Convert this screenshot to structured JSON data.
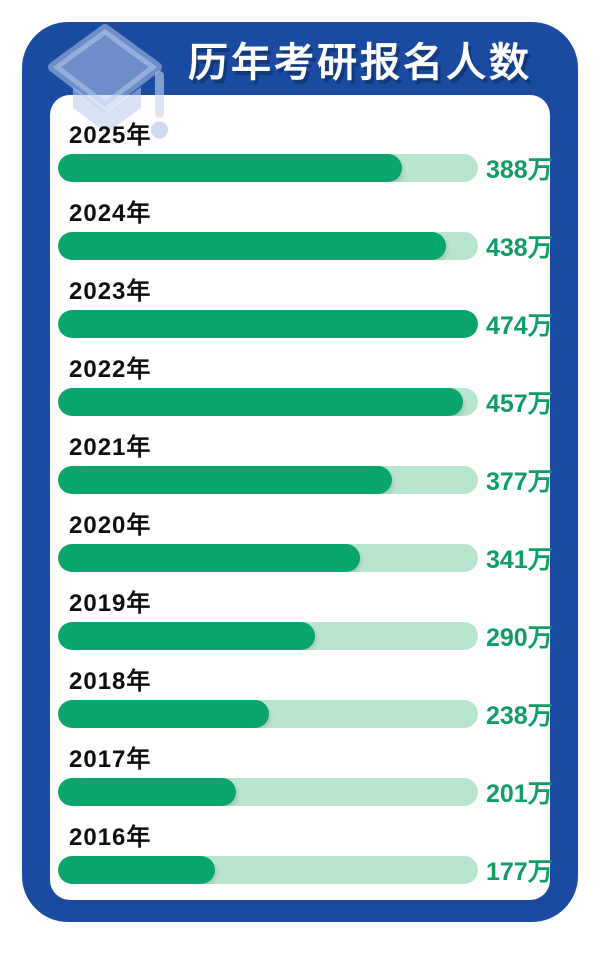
{
  "header": {
    "title": "历年考研报名人数",
    "icon": "graduation-cap-icon"
  },
  "colors": {
    "frame_blue": "#1b4ba1",
    "card_white": "#ffffff",
    "bar_green": "#09a56c",
    "track_green": "#b7e5ce",
    "value_green": "#0d9d65",
    "year_black": "#0e0e0e",
    "title_white": "#ffffff"
  },
  "chart_data": {
    "type": "bar",
    "title": "历年考研报名人数",
    "orientation": "horizontal",
    "unit": "万",
    "max_value": 474,
    "categories": [
      "2025年",
      "2024年",
      "2023年",
      "2022年",
      "2021年",
      "2020年",
      "2019年",
      "2018年",
      "2017年",
      "2016年"
    ],
    "values": [
      388,
      438,
      474,
      457,
      377,
      341,
      290,
      238,
      201,
      177
    ],
    "value_labels": [
      "388万",
      "438万",
      "474万",
      "457万",
      "377万",
      "341万",
      "290万",
      "238万",
      "201万",
      "177万"
    ],
    "bar_color": "#09a56c",
    "track_color": "#b7e5ce",
    "grid": false,
    "legend": false
  }
}
